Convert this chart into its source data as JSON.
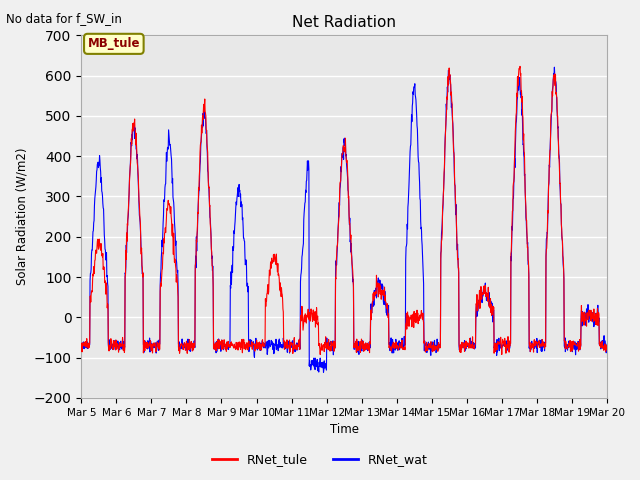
{
  "title": "Net Radiation",
  "xlabel": "Time",
  "ylabel": "Solar Radiation (W/m2)",
  "ylim": [
    -200,
    700
  ],
  "fig_facecolor": "#f0f0f0",
  "ax_facecolor": "#e8e8e8",
  "annotation_text": "No data for f_SW_in",
  "watermark_text": "MB_tule",
  "x_tick_labels": [
    "Mar 5",
    "Mar 6",
    "Mar 7",
    "Mar 8",
    "Mar 9",
    "Mar 10",
    "Mar 11",
    "Mar 12",
    "Mar 13",
    "Mar 14",
    "Mar 15",
    "Mar 16",
    "Mar 17",
    "Mar 18",
    "Mar 19",
    "Mar 20"
  ],
  "color_tule": "red",
  "color_wat": "blue",
  "num_days": 15,
  "peaks_tule": [
    190,
    480,
    280,
    520,
    0,
    155,
    0,
    430,
    80,
    0,
    600,
    65,
    625,
    600,
    0
  ],
  "peaks_wat": [
    390,
    480,
    435,
    510,
    320,
    0,
    390,
    430,
    80,
    565,
    600,
    65,
    585,
    595,
    0
  ],
  "night_val": -70,
  "noise_scale": 12
}
